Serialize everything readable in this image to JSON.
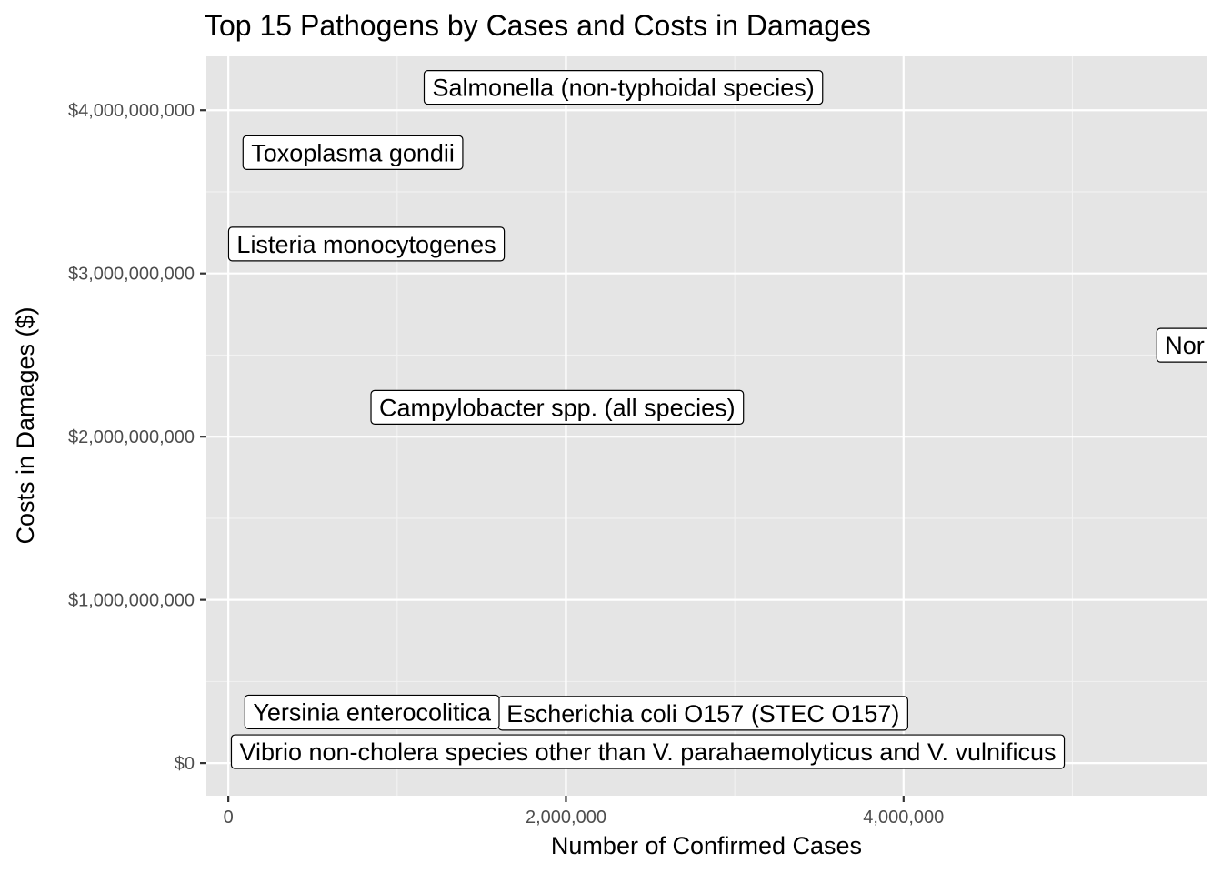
{
  "chart_data": {
    "type": "scatter",
    "title": "Top 15 Pathogens by Cases and Costs in Damages",
    "xlabel": "Number of Confirmed Cases",
    "ylabel": "Costs in Damages ($)",
    "xlim": [
      -130000,
      5800000
    ],
    "ylim": [
      -200000000,
      4330000000
    ],
    "x_ticks": [
      0,
      2000000,
      4000000
    ],
    "x_tick_labels": [
      "0",
      "2,000,000",
      "4,000,000"
    ],
    "y_ticks": [
      0,
      1000000000,
      2000000000,
      3000000000,
      4000000000
    ],
    "y_tick_labels": [
      "$0",
      "$1,000,000,000",
      "$2,000,000,000",
      "$3,000,000,000",
      "$4,000,000,000"
    ],
    "grid": true,
    "points": [
      {
        "label": "Salmonella (non-typhoidal species)",
        "x": 1160000,
        "y": 4140000000
      },
      {
        "label": "Toxoplasma gondii",
        "x": 87000,
        "y": 3740000000
      },
      {
        "label": "Listeria monocytogenes",
        "x": 1600,
        "y": 3180000000
      },
      {
        "label": "Nor",
        "x": 5500000,
        "y": 2560000000
      },
      {
        "label": "Campylobacter spp. (all species)",
        "x": 845000,
        "y": 2180000000
      },
      {
        "label": "Escherichia coli O157 (STEC O157)",
        "x": 1600000,
        "y": 305000000
      },
      {
        "label": "Yersinia enterocolitica",
        "x": 98000,
        "y": 313000000
      },
      {
        "label": "Vibrio non-cholera species other than V. parahaemolyticus and V. vulnificus",
        "x": 18000,
        "y": 70000000
      }
    ]
  },
  "colors": {
    "panel_background": "#e5e5e5",
    "grid_major": "#ffffff",
    "grid_minor": "#f2f2f2",
    "label_fill": "#ffffff",
    "label_border": "#000000"
  }
}
